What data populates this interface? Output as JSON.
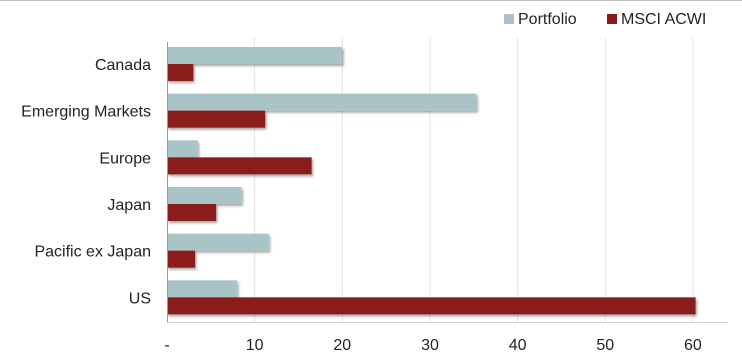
{
  "chart_data": {
    "type": "bar",
    "orientation": "horizontal",
    "categories": [
      "Canada",
      "Emerging Markets",
      "Europe",
      "Japan",
      "Pacific ex Japan",
      "US"
    ],
    "series": [
      {
        "name": "Portfolio",
        "values": [
          20.0,
          35.3,
          3.5,
          8.5,
          11.6,
          8.0
        ],
        "color": "#a9c4c6"
      },
      {
        "name": "MSCI ACWI",
        "values": [
          3.0,
          11.2,
          16.5,
          5.6,
          3.2,
          60.3
        ],
        "color": "#8b1a1a"
      }
    ],
    "x_ticks": [
      0,
      10,
      20,
      30,
      40,
      50,
      60
    ],
    "x_tick_labels": [
      "-",
      "10",
      "20",
      "30",
      "40",
      "50",
      "60"
    ],
    "xlim": [
      0,
      64
    ],
    "grid": true,
    "legend_position": "top-right",
    "title": "",
    "xlabel": "",
    "ylabel": ""
  }
}
